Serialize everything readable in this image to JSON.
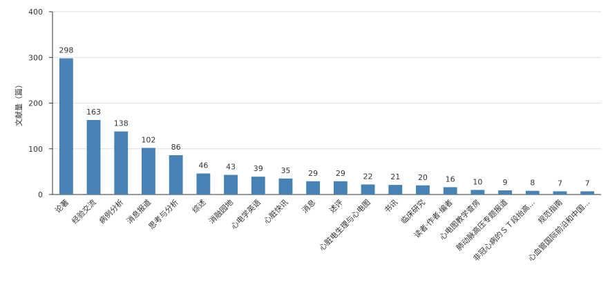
{
  "chart_data": {
    "type": "bar",
    "ylabel": "文献量（篇）",
    "ylim": [
      0,
      400
    ],
    "yticks": [
      0,
      100,
      200,
      300,
      400
    ],
    "grid": true,
    "bar_color": "#4682b4",
    "categories": [
      "论著",
      "经验交流",
      "病例分析",
      "消息报道",
      "思考与分析",
      "综述",
      "消融园地",
      "心电学英语",
      "心脏快讯",
      "消息",
      "述评",
      "心脏电生理与心电图",
      "书讯",
      "临床研究",
      "读者·作者·编者",
      "心电图教学查房",
      "肺动脉高压专题报道",
      "非冠心病的ＳＴ段抬高...",
      "规范指南",
      "心血管国际前沿和中国..."
    ],
    "values": [
      298,
      163,
      138,
      102,
      86,
      46,
      43,
      39,
      35,
      29,
      29,
      22,
      21,
      20,
      16,
      10,
      9,
      8,
      7,
      7
    ]
  }
}
